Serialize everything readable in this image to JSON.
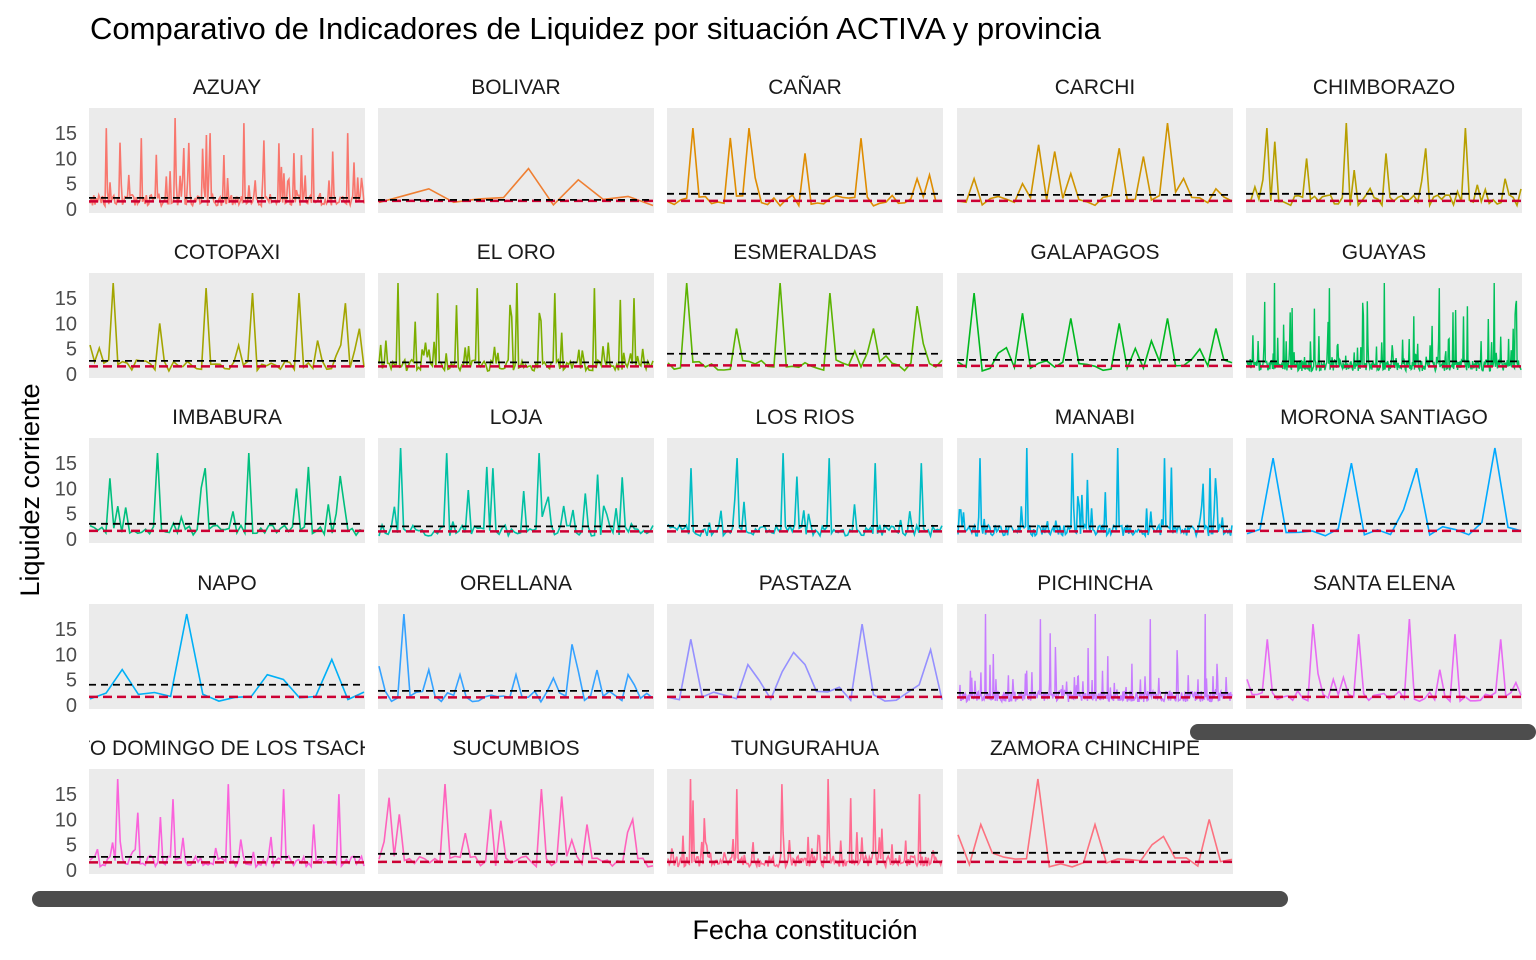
{
  "title": "Comparativo de Indicadores de Liquidez por situación ACTIVA y provincia",
  "chart_data": {
    "type": "line",
    "title": "Comparativo de Indicadores de Liquidez por situación ACTIVA y provincia",
    "xlabel": "Fecha constitución",
    "ylabel": "Liquidez corriente",
    "y_ticks": [
      0,
      5,
      10,
      15
    ],
    "ylim": [
      0,
      18
    ],
    "grid": false,
    "panel_background": "#ebebeb",
    "reference_lines": {
      "black_dashed": "#000000",
      "red_dashed": "#cc0033"
    },
    "facets": [
      {
        "name": "AZUAY",
        "color": "#f8766d",
        "density": 220,
        "peaks": [
          16,
          14,
          18,
          15,
          17,
          13,
          16,
          15
        ],
        "ref_black": 2.2,
        "ref_red": 1.5
      },
      {
        "name": "BOLIVAR",
        "color": "#ef7f32",
        "density": 12,
        "peaks": [
          4,
          8,
          2.5
        ],
        "ref_black": 1.8,
        "ref_red": 1.6
      },
      {
        "name": "CAÑAR",
        "color": "#df8c00",
        "density": 45,
        "peaks": [
          16,
          16,
          11,
          14,
          6
        ],
        "ref_black": 3.0,
        "ref_red": 1.6
      },
      {
        "name": "CARCHI",
        "color": "#cf9400",
        "density": 35,
        "peaks": [
          6,
          5,
          7,
          12,
          17,
          4
        ],
        "ref_black": 2.8,
        "ref_red": 1.6
      },
      {
        "name": "CHIMBORAZO",
        "color": "#b79f00",
        "density": 70,
        "peaks": [
          16,
          10,
          17,
          11,
          12,
          16,
          6
        ],
        "ref_black": 3.0,
        "ref_red": 1.6
      },
      {
        "name": "COTOPAXI",
        "color": "#a3a500",
        "density": 60,
        "peaks": [
          18,
          10,
          17,
          16,
          16,
          14
        ],
        "ref_black": 2.6,
        "ref_red": 1.5
      },
      {
        "name": "EL ORO",
        "color": "#7cae00",
        "density": 160,
        "peaks": [
          18,
          16,
          17,
          18,
          16,
          17,
          15
        ],
        "ref_black": 2.3,
        "ref_red": 1.5
      },
      {
        "name": "ESMERALDAS",
        "color": "#5bb300",
        "density": 45,
        "peaks": [
          18,
          9,
          18,
          16,
          9,
          6
        ],
        "ref_black": 4.0,
        "ref_red": 1.7
      },
      {
        "name": "GALAPAGOS",
        "color": "#00b81f",
        "density": 35,
        "peaks": [
          16,
          12,
          11,
          10,
          11,
          9
        ],
        "ref_black": 2.8,
        "ref_red": 1.6
      },
      {
        "name": "GUAYAS",
        "color": "#00c05a",
        "density": 420,
        "peaks": [
          18,
          17,
          18,
          17,
          18
        ],
        "ref_black": 2.5,
        "ref_red": 1.5
      },
      {
        "name": "IMBABURA",
        "color": "#00bf7d",
        "density": 70,
        "peaks": [
          12,
          17,
          14,
          17,
          10,
          7
        ],
        "ref_black": 3.0,
        "ref_red": 1.6
      },
      {
        "name": "LOJA",
        "color": "#00c0a3",
        "density": 90,
        "peaks": [
          18,
          17,
          14,
          17,
          9,
          3
        ],
        "ref_black": 2.5,
        "ref_red": 1.5
      },
      {
        "name": "LOS RIOS",
        "color": "#00bcc4",
        "density": 120,
        "peaks": [
          14,
          16,
          17,
          16,
          15,
          15
        ],
        "ref_black": 2.6,
        "ref_red": 1.5
      },
      {
        "name": "MANABI",
        "color": "#00b5e2",
        "density": 200,
        "peaks": [
          16,
          18,
          17,
          18,
          16,
          14
        ],
        "ref_black": 2.5,
        "ref_red": 1.5
      },
      {
        "name": "MORONA SANTIAGO",
        "color": "#00a9ff",
        "density": 22,
        "peaks": [
          16,
          15,
          14,
          18
        ],
        "ref_black": 3.0,
        "ref_red": 1.6
      },
      {
        "name": "NAPO",
        "color": "#00b0f6",
        "density": 18,
        "peaks": [
          7,
          18,
          6,
          9
        ],
        "ref_black": 4.0,
        "ref_red": 1.6
      },
      {
        "name": "ORELLANA",
        "color": "#35a2ff",
        "density": 45,
        "peaks": [
          18,
          6,
          6,
          12,
          6
        ],
        "ref_black": 2.8,
        "ref_red": 1.5
      },
      {
        "name": "PASTAZA",
        "color": "#9590ff",
        "density": 25,
        "peaks": [
          13,
          8,
          8,
          16,
          4
        ],
        "ref_black": 3.0,
        "ref_red": 1.6
      },
      {
        "name": "PICHINCHA",
        "color": "#c77cff",
        "density": 420,
        "peaks": [
          18,
          17,
          18,
          17,
          18
        ],
        "ref_black": 2.4,
        "ref_red": 1.5
      },
      {
        "name": "SANTA ELENA",
        "color": "#e76bf3",
        "density": 55,
        "peaks": [
          13,
          16,
          14,
          17,
          14,
          13
        ],
        "ref_black": 3.0,
        "ref_red": 1.6
      },
      {
        "name": "SANTO DOMINGO DE LOS TSACHILAS",
        "color": "#fa62db",
        "density": 110,
        "peaks": [
          18,
          14,
          17,
          16,
          15
        ],
        "ref_black": 2.6,
        "ref_red": 1.5
      },
      {
        "name": "SUCUMBIOS",
        "color": "#ff62bc",
        "density": 55,
        "peaks": [
          11,
          17,
          12,
          16,
          9,
          10
        ],
        "ref_black": 3.2,
        "ref_red": 1.6
      },
      {
        "name": "TUNGURAHUA",
        "color": "#ff6c91",
        "density": 220,
        "peaks": [
          18,
          16,
          17,
          18,
          16,
          15
        ],
        "ref_black": 3.4,
        "ref_red": 1.6
      },
      {
        "name": "ZAMORA CHINCHIPE",
        "color": "#fc717f",
        "density": 25,
        "peaks": [
          9,
          18,
          9,
          5,
          10
        ],
        "ref_black": 3.4,
        "ref_red": 1.6
      }
    ]
  }
}
